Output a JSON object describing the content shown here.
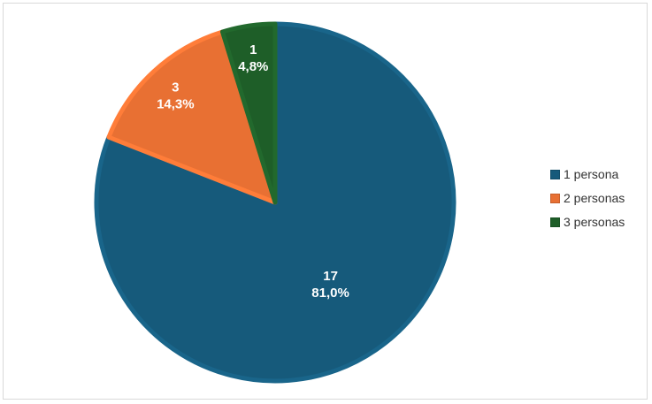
{
  "chart_data": {
    "type": "pie",
    "title": "",
    "slices": [
      {
        "label": "1 persona",
        "value": 17,
        "percent_label": "81,0%",
        "color": "#165a7b"
      },
      {
        "label": "2 personas",
        "value": 3,
        "percent_label": "14,3%",
        "color": "#e87033"
      },
      {
        "label": "3 personas",
        "value": 1,
        "percent_label": "4,8%",
        "color": "#1e5e28"
      }
    ],
    "legend_position": "right",
    "start_angle": "top",
    "direction": "clockwise"
  }
}
